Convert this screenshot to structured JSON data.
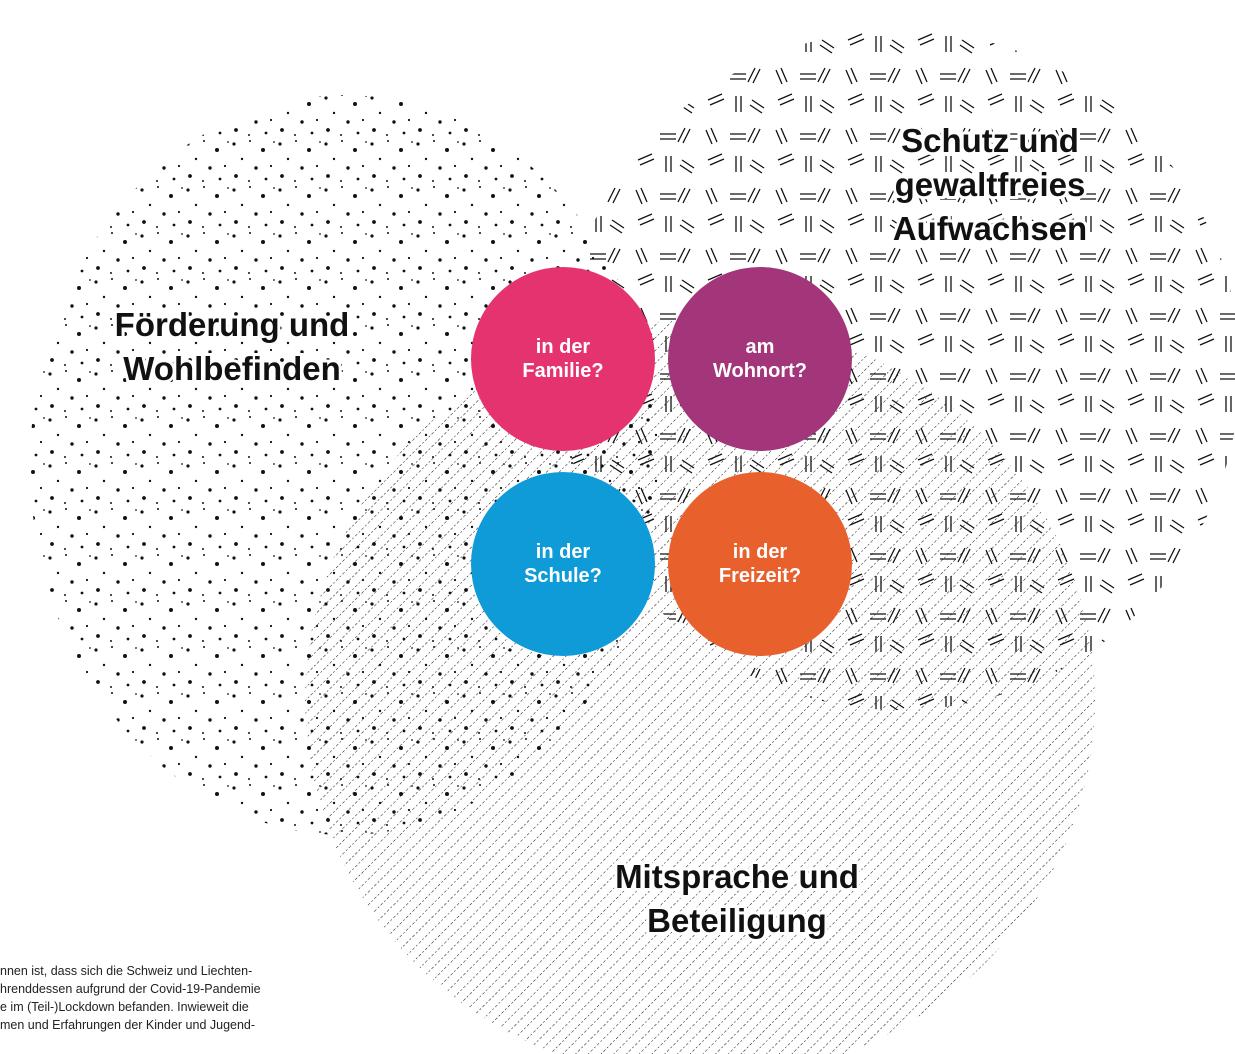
{
  "regions": [
    {
      "label": [
        "Förderung und",
        "Wohlbefinden"
      ]
    },
    {
      "label": [
        "Schutz und",
        "gewaltfreies",
        "Aufwachsen"
      ]
    },
    {
      "label": [
        "Mitsprache und",
        "Beteiligung"
      ]
    }
  ],
  "circles": [
    {
      "label": [
        "in der",
        "Familie?"
      ]
    },
    {
      "label": [
        "am",
        "Wohnort?"
      ]
    },
    {
      "label": [
        "in der",
        "Schule?"
      ]
    },
    {
      "label": [
        "in der",
        "Freizeit?"
      ]
    }
  ],
  "footer_text": [
    "nnen ist, dass sich die Schweiz und Liechten-",
    "hrenddessen aufgrund der Covid-19-Pandemie",
    "e im (Teil-)Lockdown befanden. Inwieweit die",
    "men und Erfahrungen der Kinder und Jugend-"
  ]
}
